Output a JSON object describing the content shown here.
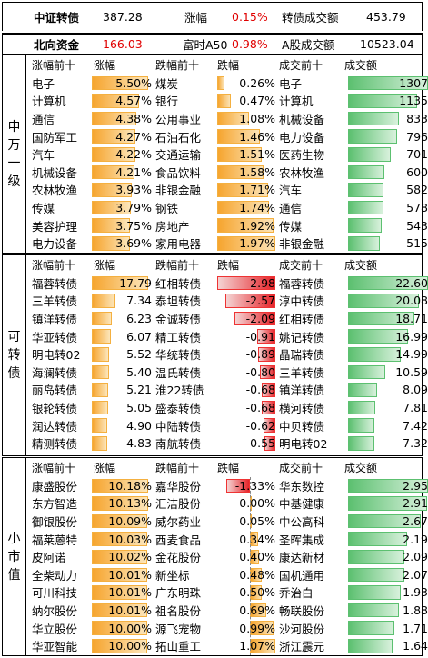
{
  "header": {
    "r1": {
      "name": "中证转债",
      "value": "387.28",
      "chg_label": "涨幅",
      "chg": "0.15%",
      "vol_label": "转债成交额",
      "vol": "453.79"
    },
    "r2": {
      "name": "北向资金",
      "value": "166.03",
      "chg_label": "富时A50",
      "chg": "0.98%",
      "vol_label": "A股成交额",
      "vol": "10523.04"
    }
  },
  "colors": {
    "up": "#e00000",
    "gold": "#f6a52f",
    "green": "#5cc070",
    "red": "#e6242a"
  },
  "sections": [
    {
      "label": "申万一级",
      "cols": [
        "涨幅前十",
        "涨幅",
        "跌幅前十",
        "跌幅",
        "成交前十",
        "成交额"
      ],
      "rows": [
        [
          "电子",
          "5.50%",
          "煤炭",
          "0.26%",
          "电子",
          "1307"
        ],
        [
          "计算机",
          "4.57%",
          "银行",
          "0.47%",
          "计算机",
          "1135"
        ],
        [
          "通信",
          "4.38%",
          "公用事业",
          "1.08%",
          "机械设备",
          "833"
        ],
        [
          "国防军工",
          "4.27%",
          "石油石化",
          "1.46%",
          "电力设备",
          "796"
        ],
        [
          "汽车",
          "4.22%",
          "交通运输",
          "1.51%",
          "医药生物",
          "701"
        ],
        [
          "机械设备",
          "4.21%",
          "食品饮料",
          "1.58%",
          "农林牧渔",
          "600"
        ],
        [
          "农林牧渔",
          "3.93%",
          "非银金融",
          "1.71%",
          "汽车",
          "582"
        ],
        [
          "传媒",
          "3.79%",
          "钢铁",
          "1.74%",
          "通信",
          "578"
        ],
        [
          "美容护理",
          "3.75%",
          "房地产",
          "1.92%",
          "传媒",
          "543"
        ],
        [
          "电力设备",
          "3.69%",
          "家用电器",
          "1.97%",
          "非银金融",
          "515"
        ]
      ],
      "levels": {
        "up": [
          5.5,
          4.57,
          4.38,
          4.27,
          4.22,
          4.21,
          3.93,
          3.79,
          3.75,
          3.69
        ],
        "down": [
          0.26,
          0.47,
          1.08,
          1.46,
          1.51,
          1.58,
          1.71,
          1.74,
          1.92,
          1.97
        ],
        "vol": [
          1307,
          1135,
          833,
          796,
          701,
          600,
          582,
          578,
          543,
          515
        ]
      }
    },
    {
      "label": "可转债",
      "cols": [
        "涨幅前十",
        "涨幅",
        "跌幅前十",
        "跌幅",
        "成交前十",
        "成交额"
      ],
      "rows": [
        [
          "福蓉转债",
          "17.79",
          "红相转债",
          "-2.98",
          "福蓉转债",
          "22.60"
        ],
        [
          "三羊转债",
          "7.34",
          "泰坦转债",
          "-2.57",
          "淳中转债",
          "20.08"
        ],
        [
          "镇洋转债",
          "6.23",
          "金诚转债",
          "-2.09",
          "红相转债",
          "18.71"
        ],
        [
          "华亚转债",
          "6.07",
          "精工转债",
          "-0.91",
          "姚记转债",
          "16.99"
        ],
        [
          "明电转02",
          "5.52",
          "华统转债",
          "-0.89",
          "晶瑞转债",
          "14.99"
        ],
        [
          "海澜转债",
          "5.40",
          "温氏转债",
          "-0.80",
          "三羊转债",
          "10.59"
        ],
        [
          "丽岛转债",
          "5.21",
          "淮22转债",
          "-0.68",
          "镇洋转债",
          "8.09"
        ],
        [
          "银轮转债",
          "5.05",
          "盛泰转债",
          "-0.68",
          "横河转债",
          "7.81"
        ],
        [
          "润达转债",
          "4.90",
          "中陆转债",
          "-0.62",
          "中贝转债",
          "7.42"
        ],
        [
          "精测转债",
          "4.83",
          "南航转债",
          "-0.55",
          "明电转02",
          "7.32"
        ]
      ],
      "levels": {
        "up": [
          17.79,
          7.34,
          6.23,
          6.07,
          5.52,
          5.4,
          5.21,
          5.05,
          4.9,
          4.83
        ],
        "down": [
          2.98,
          2.57,
          2.09,
          0.91,
          0.89,
          0.8,
          0.68,
          0.68,
          0.62,
          0.55
        ],
        "vol": [
          22.6,
          20.08,
          18.71,
          16.99,
          14.99,
          10.59,
          8.09,
          7.81,
          7.42,
          7.32
        ]
      }
    },
    {
      "label": "小市值",
      "cols": [
        "涨幅前十",
        "涨幅",
        "跌幅前十",
        "跌幅",
        "成交前十",
        "成交额"
      ],
      "rows": [
        [
          "康盛股份",
          "10.18%",
          "嘉华股份",
          "-1.33%",
          "华东数控",
          "2.95"
        ],
        [
          "东方智造",
          "10.13%",
          "汇洁股份",
          "0.00%",
          "中基健康",
          "2.91"
        ],
        [
          "御银股份",
          "10.09%",
          "威尔药业",
          "0.05%",
          "中公高科",
          "2.67"
        ],
        [
          "福莱蒽特",
          "10.03%",
          "西麦食品",
          "0.34%",
          "圣晖集成",
          "2.19"
        ],
        [
          "皮阿诺",
          "10.02%",
          "金花股份",
          "0.40%",
          "康达新材",
          "2.09"
        ],
        [
          "全柴动力",
          "10.01%",
          "新坐标",
          "0.48%",
          "国机通用",
          "2.07"
        ],
        [
          "可川科技",
          "10.01%",
          "广东明珠",
          "0.50%",
          "乔治白",
          "1.93"
        ],
        [
          "纳尔股份",
          "10.01%",
          "祖名股份",
          "0.69%",
          "畅联股份",
          "1.88"
        ],
        [
          "华立股份",
          "10.00%",
          "源飞宠物",
          "0.99%",
          "沙河股份",
          "1.71"
        ],
        [
          "华亚智能",
          "10.00%",
          "拓山重工",
          "1.07%",
          "浙江震元",
          "1.64"
        ]
      ],
      "levels": {
        "up": [
          10.18,
          10.13,
          10.09,
          10.03,
          10.02,
          10.01,
          10.01,
          10.01,
          10.0,
          10.0
        ],
        "down": [
          -1.33,
          0.0,
          0.05,
          0.34,
          0.4,
          0.48,
          0.5,
          0.69,
          0.99,
          1.07
        ],
        "vol": [
          2.95,
          2.91,
          2.67,
          2.19,
          2.09,
          2.07,
          1.93,
          1.88,
          1.71,
          1.64
        ]
      }
    }
  ]
}
